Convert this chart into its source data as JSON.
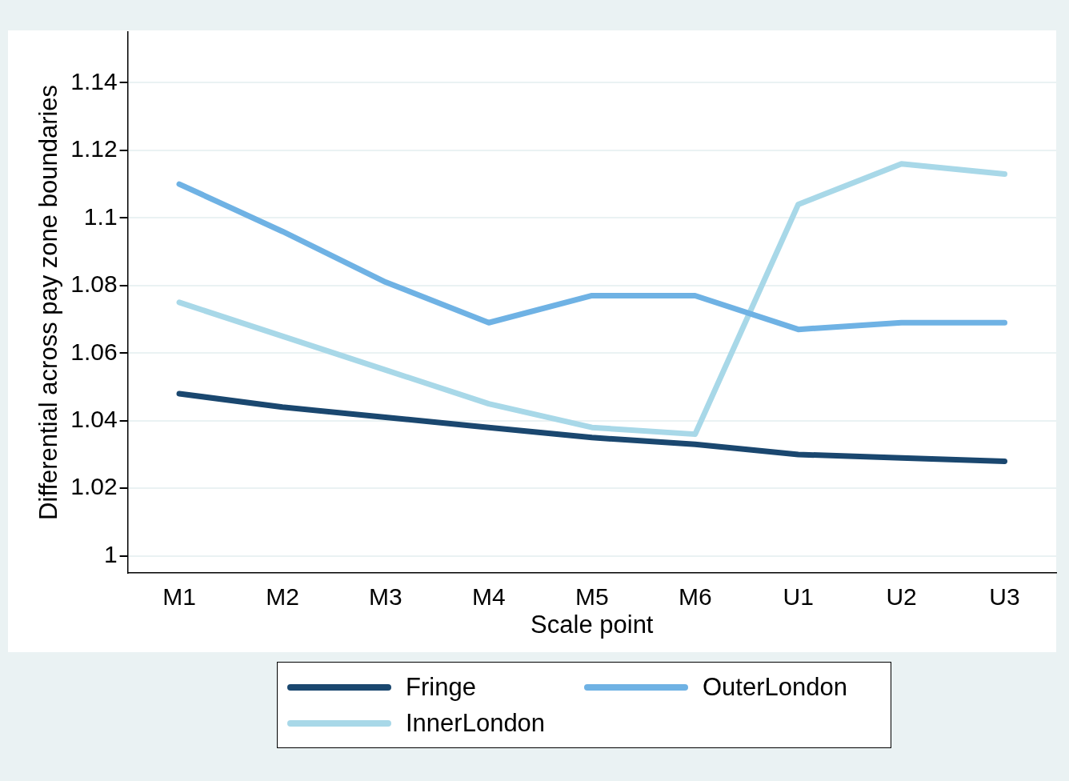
{
  "chart_data": {
    "type": "line",
    "xlabel": "Scale point",
    "ylabel": "Differential across pay zone boundaries",
    "categories": [
      "M1",
      "M2",
      "M3",
      "M4",
      "M5",
      "M6",
      "U1",
      "U2",
      "U3"
    ],
    "series": [
      {
        "name": "Fringe",
        "color": "#1a476f",
        "values": [
          1.048,
          1.044,
          1.041,
          1.038,
          1.035,
          1.033,
          1.03,
          1.029,
          1.028
        ]
      },
      {
        "name": "OuterLondon",
        "color": "#6fb2e4",
        "values": [
          1.11,
          1.096,
          1.081,
          1.069,
          1.077,
          1.077,
          1.067,
          1.069,
          1.069
        ]
      },
      {
        "name": "InnerLondon",
        "color": "#a8d8e8",
        "values": [
          1.075,
          1.065,
          1.055,
          1.045,
          1.038,
          1.036,
          1.104,
          1.116,
          1.113
        ]
      }
    ],
    "ylim": [
      0.995,
      1.155
    ],
    "yticks": [
      1,
      1.02,
      1.04,
      1.06,
      1.08,
      1.1,
      1.12,
      1.14
    ],
    "grid": "y",
    "legend": "bottom",
    "marker": "none",
    "line_style": "solid"
  }
}
